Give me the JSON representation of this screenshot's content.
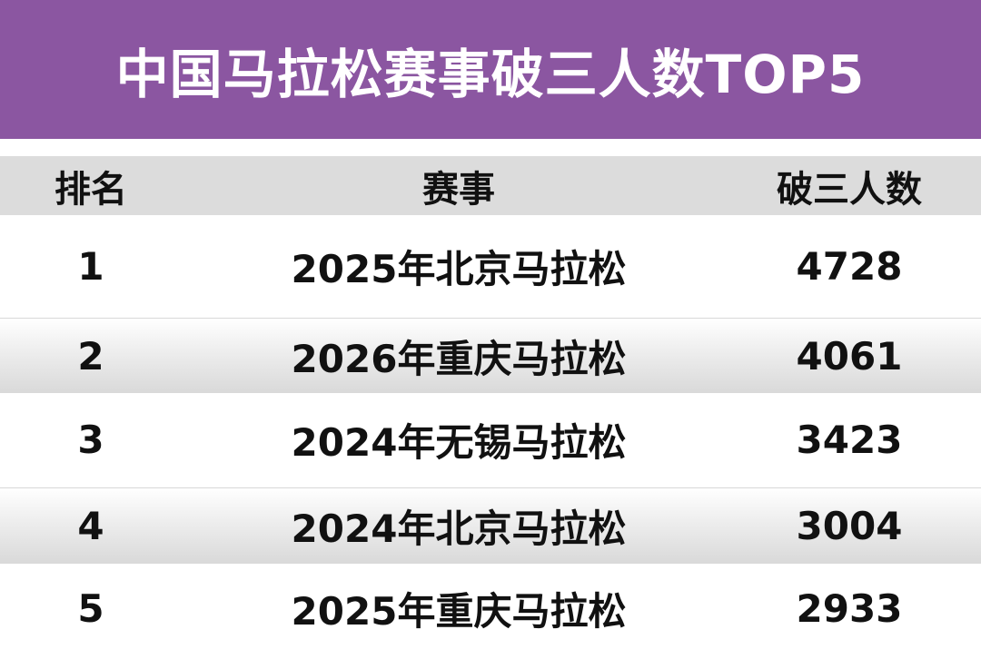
{
  "title": "中国马拉松赛事破三人数TOP5",
  "colors": {
    "title_bg": "#8b56a1",
    "header_bg": "#dcdcdc"
  },
  "table": {
    "headers": [
      "排名",
      "赛事",
      "破三人数"
    ],
    "rows": [
      [
        "1",
        "2025年北京马拉松",
        "4728"
      ],
      [
        "2",
        "2026年重庆马拉松",
        "4061"
      ],
      [
        "3",
        "2024年无锡马拉松",
        "3423"
      ],
      [
        "4",
        "2024年北京马拉松",
        "3004"
      ],
      [
        "5",
        "2025年重庆马拉松",
        "2933"
      ]
    ]
  }
}
